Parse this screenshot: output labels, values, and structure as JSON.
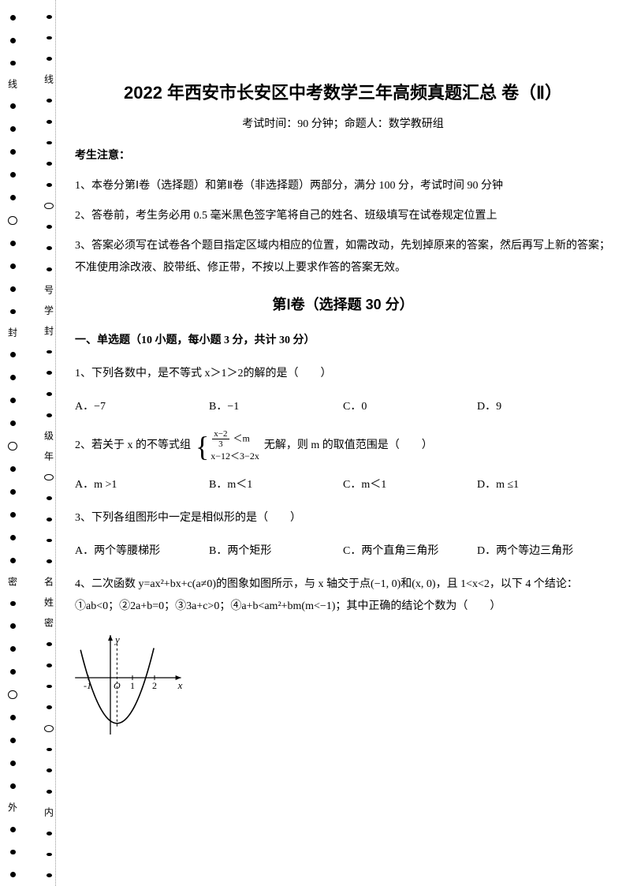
{
  "margin": {
    "outer_labels": [
      "线",
      "封",
      "密",
      "外"
    ],
    "inner_labels": [
      "线",
      "号",
      "学",
      "封",
      "级",
      "年",
      "名",
      "姓",
      "密",
      "内"
    ]
  },
  "title": "2022 年西安市长安区中考数学三年高频真题汇总  卷（Ⅱ）",
  "subtitle": "考试时间：90 分钟；命题人：数学教研组",
  "notice_heading": "考生注意：",
  "notices": [
    "1、本卷分第Ⅰ卷（选择题）和第Ⅱ卷（非选择题）两部分，满分 100 分，考试时间 90 分钟",
    "2、答卷前，考生务必用 0.5 毫米黑色签字笔将自己的姓名、班级填写在试卷规定位置上",
    "3、答案必须写在试卷各个题目指定区域内相应的位置，如需改动，先划掉原来的答案，然后再写上新的答案；不准使用涂改液、胶带纸、修正带，不按以上要求作答的答案无效。"
  ],
  "section1_header": "第Ⅰ卷（选择题   30 分）",
  "subsection1": "一、单选题（10 小题，每小题 3 分，共计 30 分）",
  "q1": {
    "text": "1、下列各数中，是不等式 x＞1＞2的解的是（　　）",
    "opts": {
      "a": "A．−7",
      "b": "B．−1",
      "c": "C．0",
      "d": "D．9"
    }
  },
  "q2": {
    "prefix": "2、若关于 x 的不等式组",
    "line1_num": "x−2",
    "line1_den": "3",
    "line1_tail": "＜m",
    "line2": "x−12＜3−2x",
    "suffix": "无解，则 m 的取值范围是（　　）",
    "opts": {
      "a": "A．m >1",
      "b": "B．m＜1",
      "c": "C．m＜1",
      "d": "D．m ≤1"
    }
  },
  "q3": {
    "text": "3、下列各组图形中一定是相似形的是（　　）",
    "opts": {
      "a": "A．两个等腰梯形",
      "b": "B．两个矩形",
      "c": "C．两个直角三角形",
      "d": "D．两个等边三角形"
    }
  },
  "q4": {
    "text": "4、二次函数 y=ax²+bx+c(a≠0)的图象如图所示，与 x 轴交于点(−1, 0)和(x, 0)，且 1<x<2，以下 4 个结论：①ab<0；②2a+b=0；③3a+c>0；④a+b<am²+bm(m<−1)；其中正确的结论个数为（　　）"
  },
  "graph": {
    "width": 150,
    "height": 135,
    "axis_color": "#000000",
    "curve_color": "#000000",
    "x_labels": [
      "-1",
      "O",
      "1",
      "2"
    ],
    "y_label": "y",
    "x_label_right": "x",
    "dashed_x": 0.5
  }
}
